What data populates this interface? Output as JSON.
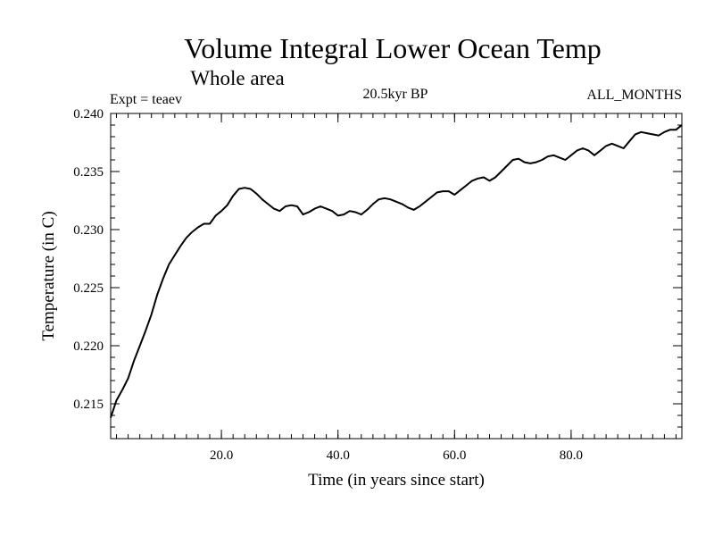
{
  "chart_data": {
    "type": "line",
    "title": "Volume Integral Lower Ocean Temp",
    "subtitle": "Whole area",
    "experiment_label": "Expt = teaev",
    "period_label": "20.5kyr BP",
    "months_label": "ALL_MONTHS",
    "xlabel": "Time (in years since start)",
    "ylabel": "Temperature (in C)",
    "xlim": [
      1,
      99
    ],
    "ylim": [
      0.212,
      0.24
    ],
    "x_ticks": [
      20,
      40,
      60,
      80
    ],
    "x_tick_labels": [
      "20.0",
      "40.0",
      "60.0",
      "80.0"
    ],
    "y_ticks": [
      0.215,
      0.22,
      0.225,
      0.23,
      0.235,
      0.24
    ],
    "y_tick_labels": [
      "0.215",
      "0.220",
      "0.225",
      "0.230",
      "0.235",
      "0.240"
    ],
    "series": [
      {
        "name": "Temperature",
        "x": [
          1,
          2,
          3,
          4,
          5,
          6,
          7,
          8,
          9,
          10,
          11,
          12,
          13,
          14,
          15,
          16,
          17,
          18,
          19,
          20,
          21,
          22,
          23,
          24,
          25,
          26,
          27,
          28,
          29,
          30,
          31,
          32,
          33,
          34,
          35,
          36,
          37,
          38,
          39,
          40,
          41,
          42,
          43,
          44,
          45,
          46,
          47,
          48,
          49,
          50,
          51,
          52,
          53,
          54,
          55,
          56,
          57,
          58,
          59,
          60,
          61,
          62,
          63,
          64,
          65,
          66,
          67,
          68,
          69,
          70,
          71,
          72,
          73,
          74,
          75,
          76,
          77,
          78,
          79,
          80,
          81,
          82,
          83,
          84,
          85,
          86,
          87,
          88,
          89,
          90,
          91,
          92,
          93,
          94,
          95,
          96,
          97,
          98,
          99
        ],
        "values": [
          0.2138,
          0.2153,
          0.2162,
          0.2172,
          0.2187,
          0.22,
          0.2213,
          0.2227,
          0.2244,
          0.2258,
          0.227,
          0.2278,
          0.2286,
          0.2293,
          0.2298,
          0.2302,
          0.2305,
          0.2305,
          0.2312,
          0.2316,
          0.2321,
          0.2329,
          0.2335,
          0.2336,
          0.2335,
          0.2331,
          0.2326,
          0.2322,
          0.2318,
          0.2316,
          0.232,
          0.2321,
          0.232,
          0.2313,
          0.2315,
          0.2318,
          0.232,
          0.2318,
          0.2316,
          0.2312,
          0.2313,
          0.2316,
          0.2315,
          0.2313,
          0.2317,
          0.2322,
          0.2326,
          0.2327,
          0.2326,
          0.2324,
          0.2322,
          0.2319,
          0.2317,
          0.232,
          0.2324,
          0.2328,
          0.2332,
          0.2333,
          0.2333,
          0.233,
          0.2334,
          0.2338,
          0.2342,
          0.2344,
          0.2345,
          0.2342,
          0.2345,
          0.235,
          0.2355,
          0.236,
          0.2361,
          0.2358,
          0.2357,
          0.2358,
          0.236,
          0.2363,
          0.2364,
          0.2362,
          0.236,
          0.2364,
          0.2368,
          0.237,
          0.2368,
          0.2364,
          0.2368,
          0.2372,
          0.2374,
          0.2372,
          0.237,
          0.2376,
          0.2382,
          0.2384,
          0.2383,
          0.2382,
          0.2381,
          0.2384,
          0.2386,
          0.2386,
          0.239
        ]
      }
    ]
  }
}
